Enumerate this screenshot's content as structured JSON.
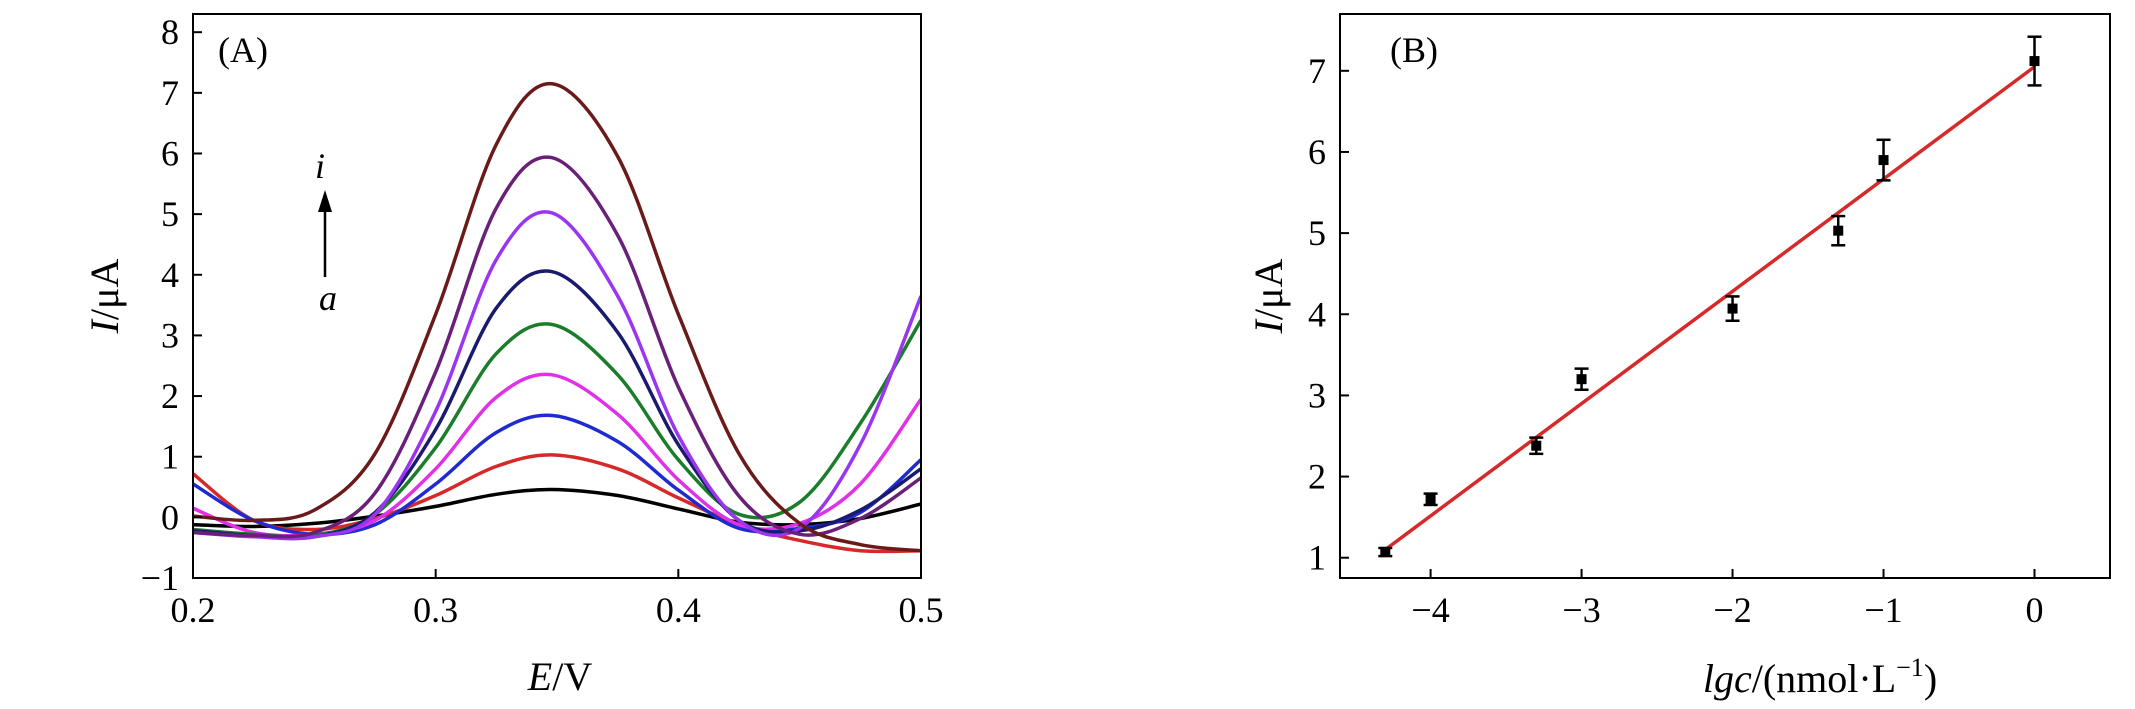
{
  "chart_data": [
    {
      "panel": "(A)",
      "type": "line",
      "xlabel": "E/V",
      "xlabel_parts": {
        "var": "E",
        "unit": "/V"
      },
      "ylabel": "I/μA",
      "ylabel_parts": {
        "var": "I",
        "unit": "/μA"
      },
      "xlim": [
        0.2,
        0.5
      ],
      "ylim": [
        -1,
        8.3
      ],
      "xticks": [
        0.2,
        0.3,
        0.4,
        0.5
      ],
      "xtick_labels": [
        "0.2",
        "0.3",
        "0.4",
        "0.5"
      ],
      "yticks": [
        -1,
        0,
        1,
        2,
        3,
        4,
        5,
        6,
        7,
        8
      ],
      "ytick_labels": [
        "−1",
        "0",
        "1",
        "2",
        "3",
        "4",
        "5",
        "6",
        "7",
        "8"
      ],
      "grid": false,
      "legend": null,
      "annotation": {
        "top": "i",
        "bottom": "a",
        "arrow": "up"
      },
      "peak_potential": 0.348,
      "x": [
        0.2,
        0.225,
        0.25,
        0.275,
        0.3,
        0.325,
        0.348,
        0.375,
        0.4,
        0.425,
        0.45,
        0.475,
        0.5
      ],
      "series": [
        {
          "color": "#000000",
          "values": [
            -0.12,
            -0.15,
            -0.1,
            0.02,
            0.18,
            0.38,
            0.46,
            0.36,
            0.14,
            -0.08,
            -0.12,
            -0.02,
            0.22
          ]
        },
        {
          "color": "#d62a2a",
          "values": [
            0.72,
            -0.05,
            -0.2,
            -0.02,
            0.36,
            0.84,
            1.03,
            0.8,
            0.32,
            -0.12,
            -0.38,
            -0.55,
            -0.55
          ]
        },
        {
          "color": "#1f2bd0",
          "values": [
            0.55,
            -0.05,
            -0.28,
            -0.12,
            0.55,
            1.4,
            1.68,
            1.25,
            0.45,
            -0.18,
            -0.18,
            0.08,
            0.95
          ]
        },
        {
          "color": "#e030e8",
          "values": [
            0.15,
            -0.25,
            -0.28,
            -0.05,
            0.8,
            1.98,
            2.35,
            1.7,
            0.62,
            -0.12,
            -0.1,
            0.55,
            1.95
          ]
        },
        {
          "color": "#1b7d2b",
          "values": [
            -0.2,
            -0.28,
            -0.3,
            0.05,
            1.15,
            2.7,
            3.18,
            2.35,
            0.95,
            0.05,
            0.25,
            1.55,
            3.25
          ]
        },
        {
          "color": "#1a1a6e",
          "values": [
            -0.22,
            -0.3,
            -0.32,
            0.08,
            1.45,
            3.45,
            4.05,
            3.05,
            1.2,
            -0.05,
            -0.22,
            0.12,
            0.8
          ]
        },
        {
          "color": "#9b35ef",
          "values": [
            -0.25,
            -0.32,
            -0.32,
            0.05,
            1.75,
            4.25,
            5.02,
            3.65,
            1.35,
            -0.05,
            -0.18,
            1.2,
            3.65
          ]
        },
        {
          "color": "#6a1f78",
          "values": [
            -0.25,
            -0.3,
            -0.25,
            0.4,
            2.4,
            5.1,
            5.93,
            4.65,
            2.15,
            0.35,
            -0.28,
            -0.02,
            0.65
          ]
        },
        {
          "color": "#6b1a1a",
          "values": [
            0.02,
            -0.05,
            0.12,
            1.05,
            3.35,
            6.15,
            7.15,
            5.95,
            3.35,
            1.05,
            -0.1,
            -0.45,
            -0.55
          ]
        }
      ]
    },
    {
      "panel": "(B)",
      "type": "scatter",
      "xlabel": "lgc/(nmol·L⁻¹)",
      "xlabel_parts": {
        "var": "lgc",
        "unit": "/(nmol·L",
        "sup": "−1",
        "close": ")"
      },
      "ylabel": "I/μA",
      "ylabel_parts": {
        "var": "I",
        "unit": "/μA"
      },
      "xlim": [
        -4.6,
        0.5
      ],
      "ylim": [
        0.75,
        7.7
      ],
      "xticks": [
        -4,
        -3,
        -2,
        -1,
        0
      ],
      "xtick_labels": [
        "−4",
        "−3",
        "−2",
        "−1",
        "0"
      ],
      "yticks": [
        1,
        2,
        3,
        4,
        5,
        6,
        7
      ],
      "ytick_labels": [
        "1",
        "2",
        "3",
        "4",
        "5",
        "6",
        "7"
      ],
      "grid": false,
      "legend": null,
      "points": {
        "color": "#000000",
        "x": [
          -4.3,
          -4.0,
          -3.3,
          -3.0,
          -2.0,
          -1.3,
          -1.0,
          0.0
        ],
        "y": [
          1.07,
          1.72,
          2.38,
          3.2,
          4.07,
          5.03,
          5.9,
          7.12
        ],
        "err": [
          0.05,
          0.07,
          0.1,
          0.13,
          0.15,
          0.18,
          0.25,
          0.3
        ]
      },
      "fit": {
        "color": "#d62a2a",
        "x": [
          -4.3,
          0.0
        ],
        "y": [
          1.1,
          7.05
        ]
      }
    }
  ]
}
